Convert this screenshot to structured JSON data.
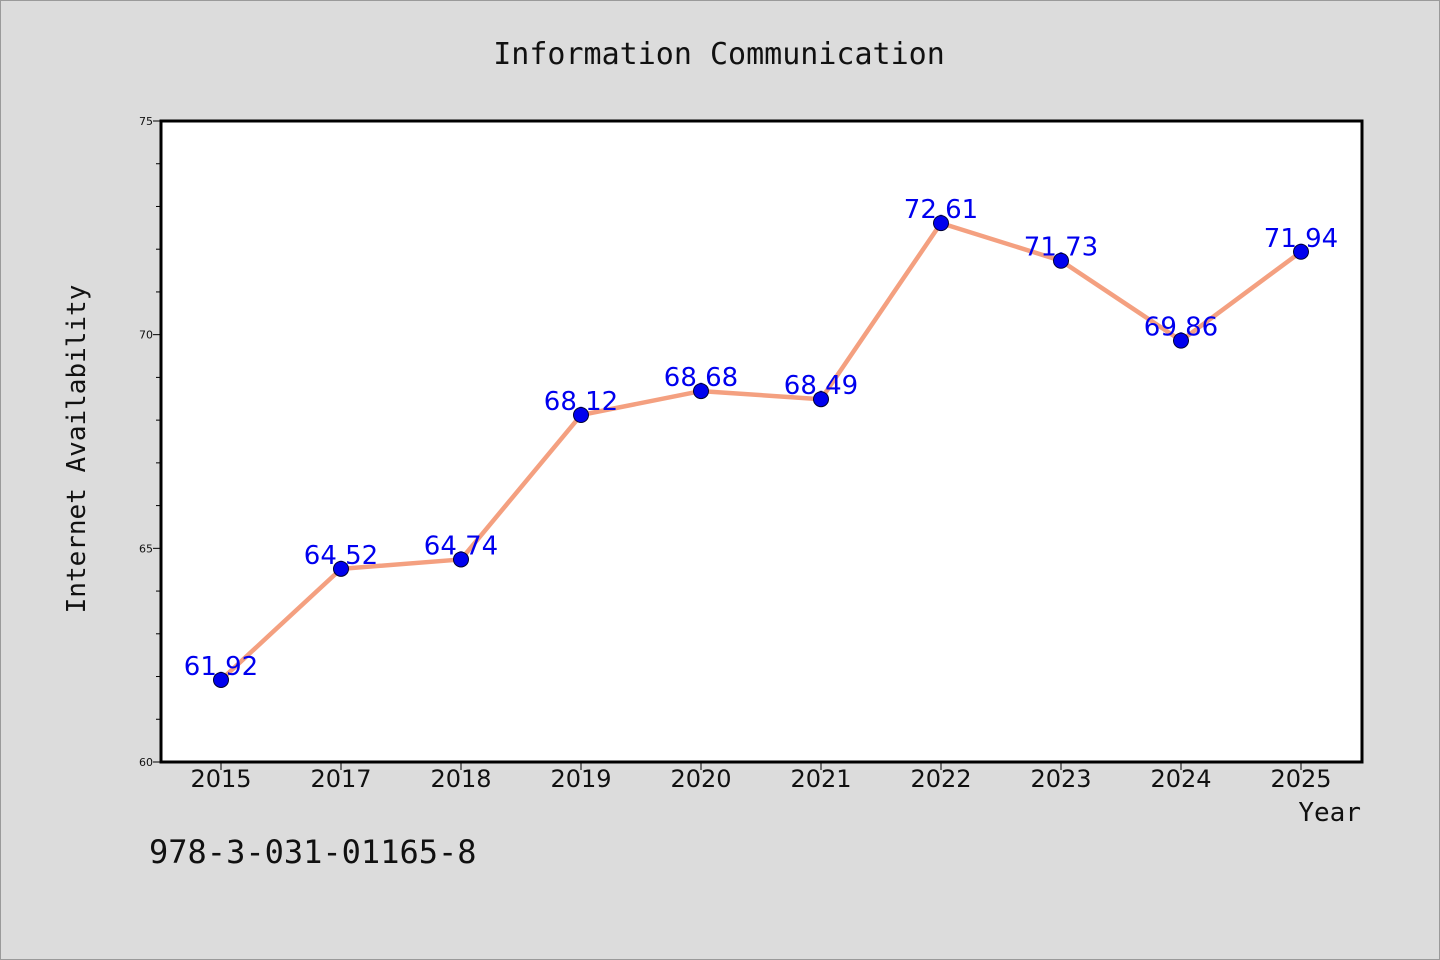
{
  "chart_data": {
    "type": "line",
    "title": "Information Communication",
    "xlabel": "Year",
    "ylabel": "Internet Availability",
    "categories": [
      "2015",
      "2017",
      "2018",
      "2019",
      "2020",
      "2021",
      "2022",
      "2023",
      "2024",
      "2025"
    ],
    "series": [
      {
        "values": [
          61.92,
          64.52,
          64.74,
          68.12,
          68.68,
          68.49,
          72.61,
          71.73,
          69.86,
          71.94
        ],
        "line_color": "#f4a080",
        "marker_color": "#0000ee",
        "label_color": "#0000ee"
      }
    ],
    "data_labels": [
      "61.92",
      "64.52",
      "64.74",
      "68.12",
      "68.68",
      "68.49",
      "72.61",
      "71.73",
      "69.86",
      "71.94"
    ],
    "ylim": [
      60,
      75
    ],
    "yticks": [
      "60",
      "65",
      "70",
      "75"
    ],
    "grid": false,
    "legend": "none"
  },
  "footer": {
    "isbn": "978-3-031-01165-8"
  },
  "colors": {
    "figure_background": "#dcdcdc",
    "plot_background": "#ffffff",
    "axis": "#000000"
  }
}
